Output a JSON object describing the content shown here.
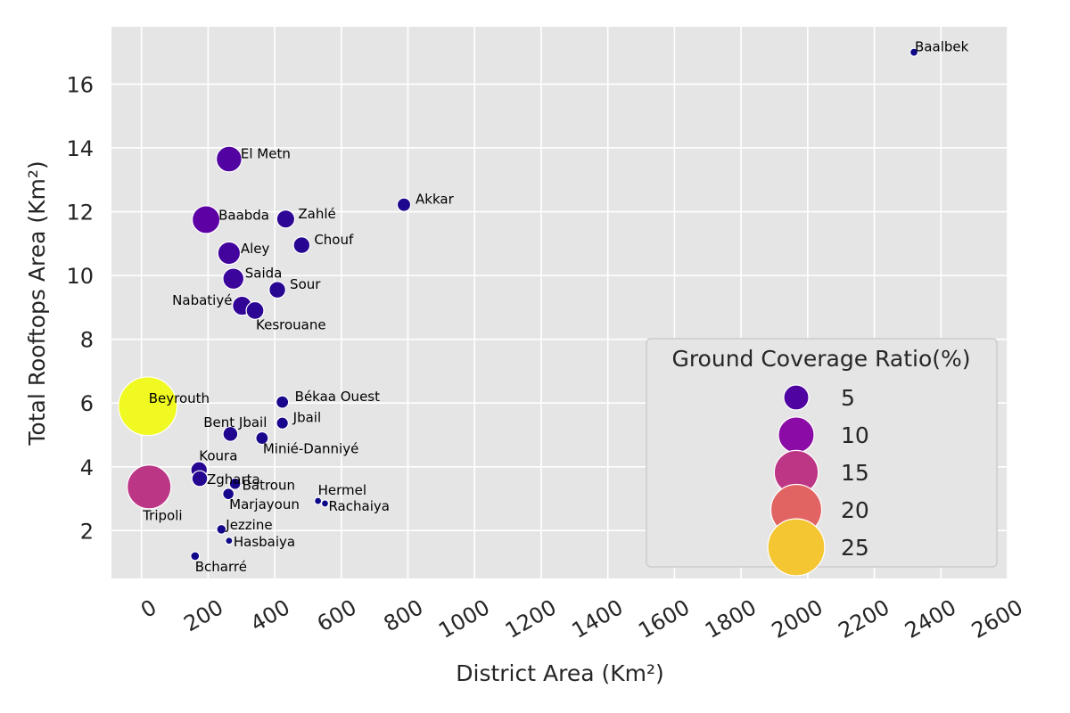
{
  "chart_data": {
    "type": "scatter",
    "title": "",
    "xlabel": "District Area (Km²)",
    "ylabel": "Total Rooftops Area (Km²)",
    "xlim": [
      -90,
      2600
    ],
    "ylim": [
      0.5,
      17.8
    ],
    "xticks": [
      0,
      200,
      400,
      600,
      800,
      1000,
      1200,
      1400,
      1600,
      1800,
      2000,
      2200,
      2400,
      2600
    ],
    "yticks": [
      2,
      4,
      6,
      8,
      10,
      12,
      14,
      16
    ],
    "grid": true,
    "size_variable": "Ground Coverage Ratio(%)",
    "colormap": "plasma",
    "size_range": [
      0.6,
      26.5
    ],
    "points": [
      {
        "name": "Baalbek",
        "x": 2319,
        "y": 17.0,
        "ratio": 0.7
      },
      {
        "name": "El Metn",
        "x": 263,
        "y": 13.65,
        "ratio": 5.2
      },
      {
        "name": "Akkar",
        "x": 788,
        "y": 12.22,
        "ratio": 1.6
      },
      {
        "name": "Baabda",
        "x": 194,
        "y": 11.75,
        "ratio": 6.1
      },
      {
        "name": "Zahlé",
        "x": 433,
        "y": 11.77,
        "ratio": 2.7
      },
      {
        "name": "Chouf",
        "x": 481,
        "y": 10.95,
        "ratio": 2.3
      },
      {
        "name": "Aley",
        "x": 263,
        "y": 10.7,
        "ratio": 4.1
      },
      {
        "name": "Saida",
        "x": 276,
        "y": 9.9,
        "ratio": 3.6
      },
      {
        "name": "Sour",
        "x": 408,
        "y": 9.55,
        "ratio": 2.3
      },
      {
        "name": "Nabatiyé",
        "x": 302,
        "y": 9.05,
        "ratio": 3.0
      },
      {
        "name": "Kesrouane",
        "x": 341,
        "y": 8.9,
        "ratio": 2.6
      },
      {
        "name": "Beyrouth",
        "x": 19,
        "y": 5.9,
        "ratio": 26.5
      },
      {
        "name": "Békaa Ouest",
        "x": 423,
        "y": 6.03,
        "ratio": 1.4
      },
      {
        "name": "Jbail",
        "x": 423,
        "y": 5.37,
        "ratio": 1.3
      },
      {
        "name": "Bent Jbail",
        "x": 267,
        "y": 5.03,
        "ratio": 1.9
      },
      {
        "name": "Minié-Danniyé",
        "x": 362,
        "y": 4.9,
        "ratio": 1.4
      },
      {
        "name": "Koura",
        "x": 173,
        "y": 3.9,
        "ratio": 2.3
      },
      {
        "name": "Zgharta",
        "x": 175,
        "y": 3.63,
        "ratio": 2.1
      },
      {
        "name": "Batroun",
        "x": 281,
        "y": 3.47,
        "ratio": 1.2
      },
      {
        "name": "Tripoli",
        "x": 23,
        "y": 3.37,
        "ratio": 14.9
      },
      {
        "name": "Marjayoun",
        "x": 261,
        "y": 3.15,
        "ratio": 1.2
      },
      {
        "name": "Hermel",
        "x": 530,
        "y": 2.93,
        "ratio": 0.6
      },
      {
        "name": "Rachaiya",
        "x": 551,
        "y": 2.85,
        "ratio": 0.6
      },
      {
        "name": "Jezzine",
        "x": 240,
        "y": 2.04,
        "ratio": 0.9
      },
      {
        "name": "Hasbaiya",
        "x": 263,
        "y": 1.68,
        "ratio": 0.6
      },
      {
        "name": "Bcharré",
        "x": 161,
        "y": 1.2,
        "ratio": 0.8
      }
    ],
    "legend": {
      "title": "Ground Coverage Ratio(%)",
      "position": "lower-right",
      "entries": [
        {
          "label": "5",
          "value": 5
        },
        {
          "label": "10",
          "value": 10
        },
        {
          "label": "15",
          "value": 15
        },
        {
          "label": "20",
          "value": 20
        },
        {
          "label": "25",
          "value": 25
        }
      ]
    }
  }
}
